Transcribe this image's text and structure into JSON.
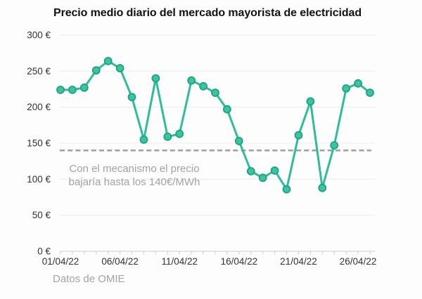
{
  "title": "Precio medio diario del mercado mayorista de electricidad",
  "source": "Datos de OMIE",
  "annotation": {
    "line1": "Con el mecanismo el precio",
    "line2": "bajaría hasta los 140€/MWh"
  },
  "chart_data": {
    "type": "line",
    "title": "Precio medio diario del mercado mayorista de electricidad",
    "x": [
      "01/04/22",
      "02/04/22",
      "03/04/22",
      "04/04/22",
      "05/04/22",
      "06/04/22",
      "07/04/22",
      "08/04/22",
      "09/04/22",
      "10/04/22",
      "11/04/22",
      "12/04/22",
      "13/04/22",
      "14/04/22",
      "15/04/22",
      "16/04/22",
      "17/04/22",
      "18/04/22",
      "19/04/22",
      "20/04/22",
      "21/04/22",
      "22/04/22",
      "23/04/22",
      "24/04/22",
      "25/04/22",
      "26/04/22",
      "27/04/22"
    ],
    "values": [
      224,
      224,
      227,
      251,
      264,
      254,
      214,
      155,
      240,
      159,
      163,
      237,
      229,
      220,
      197,
      153,
      111,
      102,
      112,
      86,
      161,
      208,
      88,
      147,
      226,
      233,
      220
    ],
    "unit": "€/MWh",
    "ylim": [
      0,
      300
    ],
    "y_ticks": [
      0,
      50,
      100,
      150,
      200,
      250,
      300
    ],
    "y_tick_format": "{v} €",
    "x_tick_labels": [
      "01/04/22",
      "06/04/22",
      "11/04/22",
      "16/04/22",
      "21/04/22",
      "26/04/22"
    ],
    "reference_line": {
      "value": 140,
      "label": "Con el mecanismo el precio bajaría hasta los 140€/MWh"
    },
    "grid": true,
    "legend": "none",
    "xlabel": "",
    "ylabel": ""
  },
  "colors": {
    "accent_teal": "#2ebd99",
    "marker_fill": "#3cc4a0",
    "marker_stroke": "#1fa183",
    "reference_gray": "#a2a2a2",
    "text_dark": "#121212",
    "axis_text": "#333333",
    "muted_text": "#a3a3a3",
    "gridline": "#ededed",
    "axis_line": "#cbcbcb",
    "background": "#fdfdfd"
  }
}
